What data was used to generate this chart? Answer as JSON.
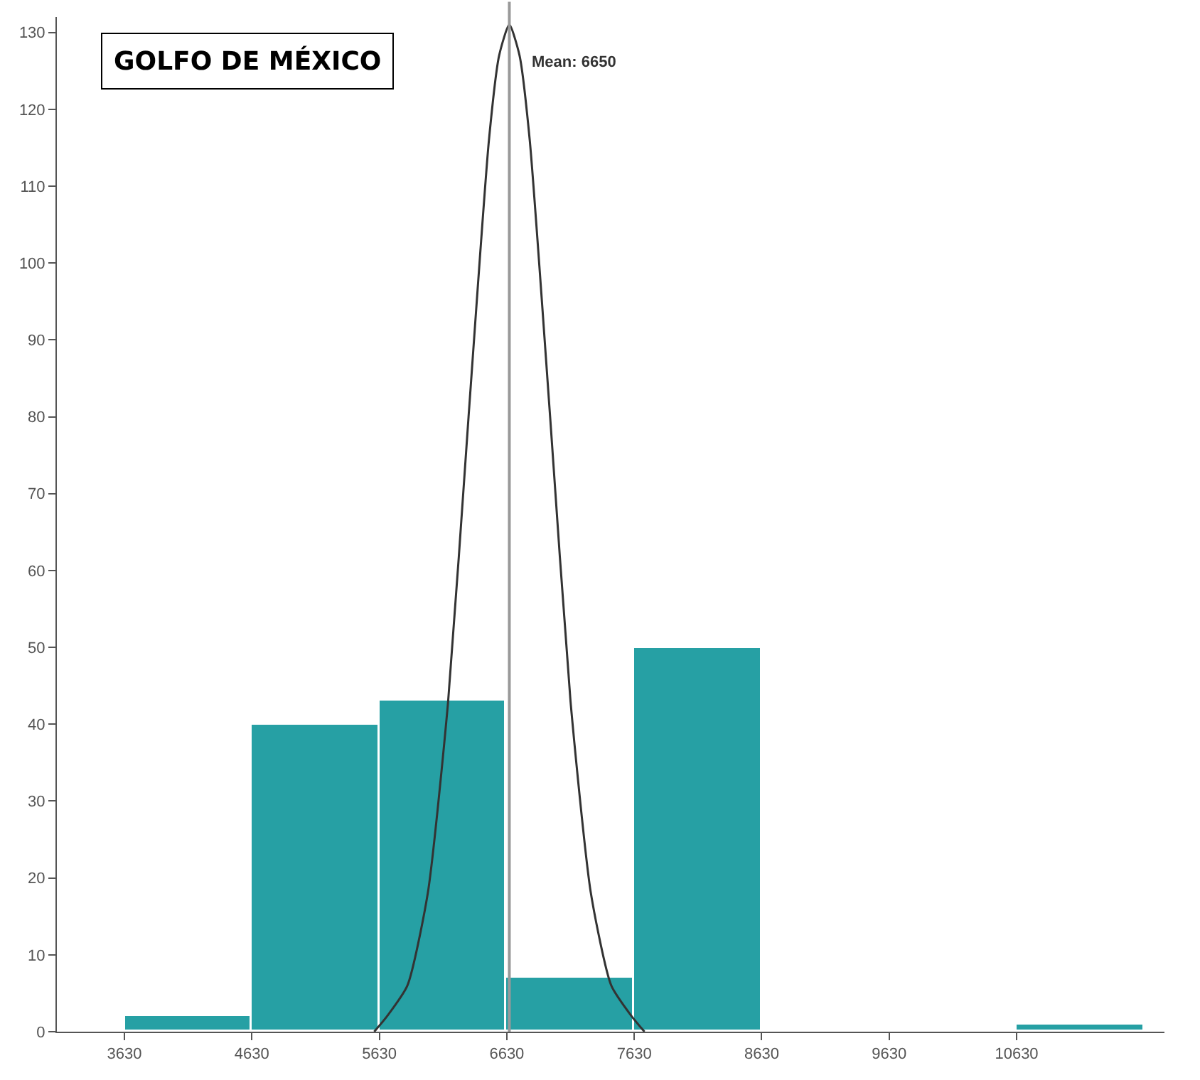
{
  "chart_data": {
    "type": "histogram",
    "title": "GOLFO DE MÉXICO",
    "bins": [
      3630,
      4630,
      5630,
      6630,
      7630,
      8630,
      9630,
      10630,
      11630
    ],
    "values": [
      2,
      40,
      43,
      7,
      50,
      0,
      0,
      1
    ],
    "color": "#26a0a4",
    "series": [
      {
        "type": "line",
        "color": "#333333",
        "x": [
          5590,
          5690,
          5850,
          6010,
          6170,
          6330,
          6490,
          6570,
          6650,
          6730,
          6810,
          6970,
          7130,
          7290,
          7450,
          7610,
          7710
        ],
        "values": [
          0,
          2,
          6,
          18,
          43,
          80,
          116,
          127,
          131,
          127,
          116,
          80,
          43,
          18,
          6,
          2,
          0
        ]
      }
    ],
    "ref_lines": [
      {
        "axis": "x",
        "value": 6650,
        "label": "Mean: 6650",
        "color": "#999999"
      }
    ],
    "xlim": [
      3100,
      11790
    ],
    "xticks": [
      3630,
      4630,
      5630,
      6630,
      7630,
      8630,
      9630,
      10630
    ],
    "ylim": [
      0,
      132
    ],
    "yticks": [
      0,
      10,
      20,
      30,
      40,
      50,
      60,
      70,
      80,
      90,
      100,
      110,
      120,
      130
    ]
  }
}
